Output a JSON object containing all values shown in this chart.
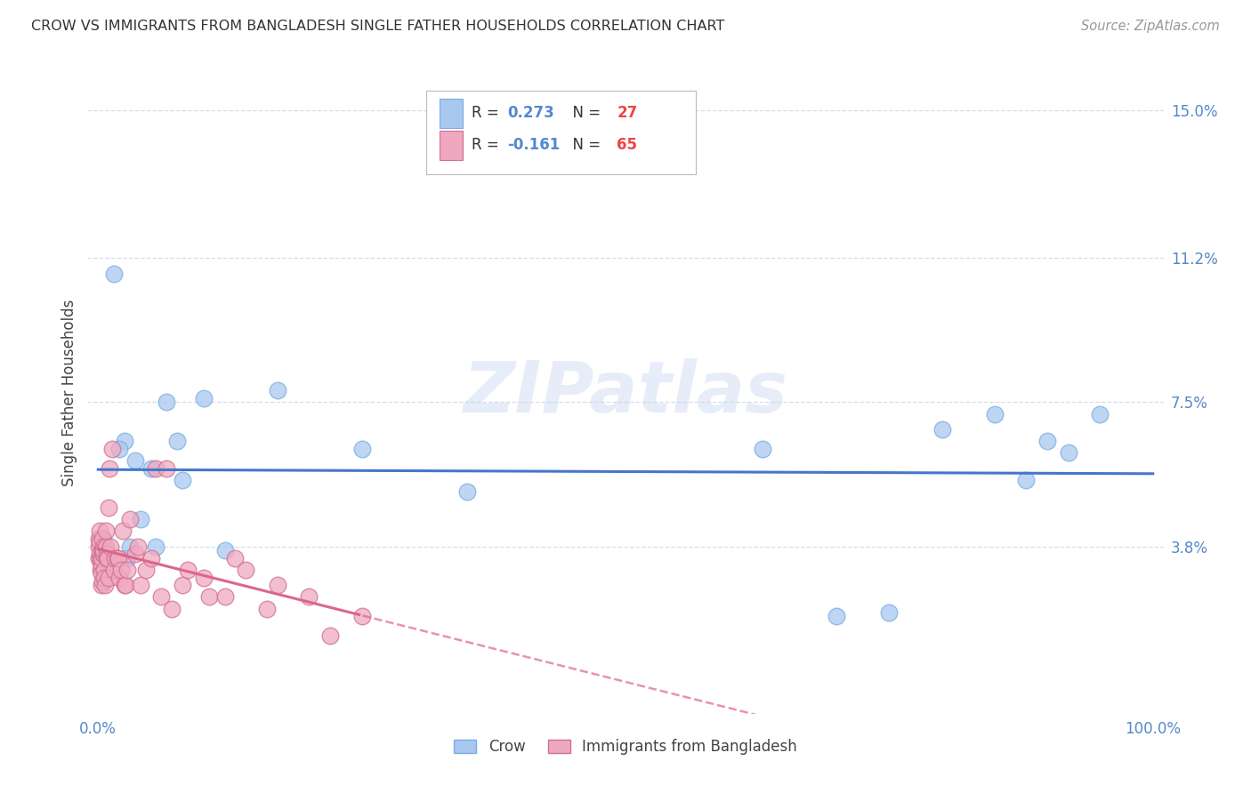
{
  "title": "CROW VS IMMIGRANTS FROM BANGLADESH SINGLE FATHER HOUSEHOLDS CORRELATION CHART",
  "source": "Source: ZipAtlas.com",
  "ylabel": "Single Father Households",
  "watermark": "ZIPatlas",
  "xlim": [
    -1,
    101
  ],
  "ylim": [
    -0.5,
    16.0
  ],
  "yticks": [
    3.8,
    7.5,
    11.2,
    15.0
  ],
  "ytick_labels": [
    "3.8%",
    "7.5%",
    "11.2%",
    "15.0%"
  ],
  "xtick_labels": [
    "0.0%",
    "100.0%"
  ],
  "crow_points_x": [
    0.5,
    1.5,
    2.5,
    3.5,
    5.0,
    6.5,
    8.0,
    10.0,
    17.0,
    25.0,
    35.0,
    63.0,
    70.0,
    75.0,
    80.0,
    85.0,
    88.0,
    90.0,
    92.0,
    95.0,
    2.0,
    3.0,
    4.0,
    5.5,
    12.0,
    2.8,
    7.5
  ],
  "crow_points_y": [
    4.0,
    10.8,
    6.5,
    6.0,
    5.8,
    7.5,
    5.5,
    7.6,
    7.8,
    6.3,
    5.2,
    6.3,
    2.0,
    2.1,
    6.8,
    7.2,
    5.5,
    6.5,
    6.2,
    7.2,
    6.3,
    3.8,
    4.5,
    3.8,
    3.7,
    3.5,
    6.5
  ],
  "bangladesh_points_x": [
    0.05,
    0.08,
    0.1,
    0.12,
    0.15,
    0.18,
    0.2,
    0.22,
    0.25,
    0.28,
    0.3,
    0.32,
    0.35,
    0.38,
    0.4,
    0.42,
    0.45,
    0.48,
    0.5,
    0.52,
    0.55,
    0.6,
    0.65,
    0.7,
    0.75,
    0.8,
    0.85,
    0.9,
    0.95,
    1.0,
    1.1,
    1.2,
    1.3,
    1.5,
    1.6,
    1.8,
    1.9,
    2.0,
    2.2,
    2.3,
    2.5,
    2.6,
    2.8,
    3.0,
    3.5,
    3.8,
    4.0,
    4.5,
    5.0,
    5.5,
    6.0,
    6.5,
    7.0,
    8.0,
    8.5,
    10.0,
    10.5,
    12.0,
    13.0,
    14.0,
    16.0,
    17.0,
    20.0,
    22.0,
    25.0
  ],
  "bangladesh_points_y": [
    3.5,
    3.8,
    4.0,
    3.9,
    4.2,
    3.6,
    3.5,
    3.4,
    3.2,
    3.3,
    2.8,
    3.1,
    3.5,
    3.7,
    4.0,
    2.9,
    3.8,
    3.6,
    3.6,
    3.7,
    3.2,
    3.0,
    2.8,
    3.8,
    4.2,
    3.6,
    3.5,
    3.5,
    3.0,
    4.8,
    5.8,
    3.8,
    6.3,
    3.2,
    3.5,
    3.5,
    3.5,
    3.0,
    3.2,
    4.2,
    2.8,
    2.8,
    3.2,
    4.5,
    3.6,
    3.8,
    2.8,
    3.2,
    3.5,
    5.8,
    2.5,
    5.8,
    2.2,
    2.8,
    3.2,
    3.0,
    2.5,
    2.5,
    3.5,
    3.2,
    2.2,
    2.8,
    2.5,
    1.5,
    2.0
  ],
  "crow_color": "#a8c8f0",
  "crow_edge_color": "#7aaee0",
  "bangladesh_color": "#f0a8c0",
  "bangladesh_edge_color": "#d07090",
  "crow_line_color": "#4477cc",
  "bangladesh_line_color": "#dd6688",
  "title_color": "#333333",
  "axis_label_color": "#5588cc",
  "grid_color": "#d8dde8",
  "background_color": "#ffffff",
  "legend_R_color": "#5588cc",
  "legend_N_color": "#ee4444",
  "source_color": "#999999"
}
